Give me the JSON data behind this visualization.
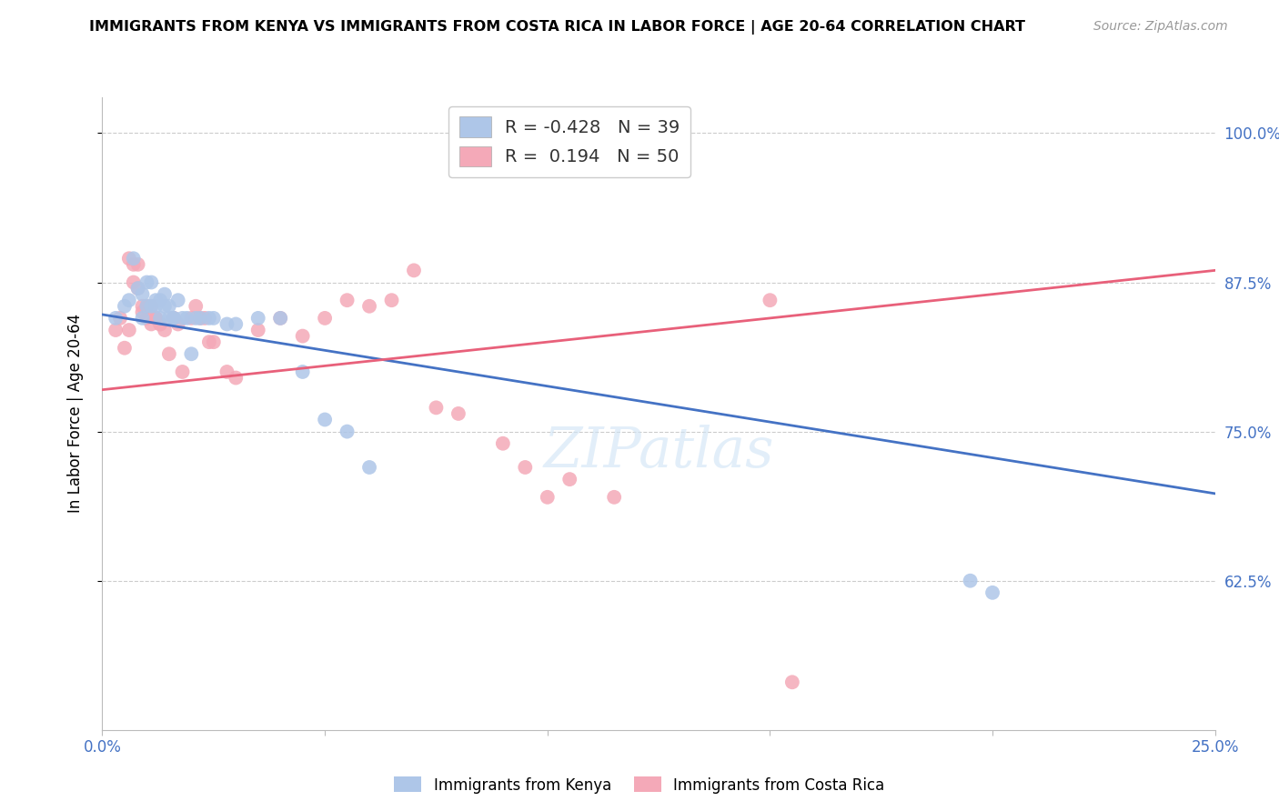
{
  "title": "IMMIGRANTS FROM KENYA VS IMMIGRANTS FROM COSTA RICA IN LABOR FORCE | AGE 20-64 CORRELATION CHART",
  "source": "Source: ZipAtlas.com",
  "ylabel": "In Labor Force | Age 20-64",
  "xlim": [
    0.0,
    0.25
  ],
  "ylim": [
    0.5,
    1.03
  ],
  "yticks": [
    0.625,
    0.75,
    0.875,
    1.0
  ],
  "ytick_labels": [
    "62.5%",
    "75.0%",
    "87.5%",
    "100.0%"
  ],
  "xticks": [
    0.0,
    0.05,
    0.1,
    0.15,
    0.2,
    0.25
  ],
  "xtick_labels": [
    "0.0%",
    "",
    "",
    "",
    "",
    "25.0%"
  ],
  "kenya_R": -0.428,
  "kenya_N": 39,
  "costarica_R": 0.194,
  "costarica_N": 50,
  "kenya_color": "#aec6e8",
  "costarica_color": "#f4a9b8",
  "kenya_line_color": "#4472c4",
  "costarica_line_color": "#e8607a",
  "watermark": "ZIPatlas",
  "kenya_x": [
    0.003,
    0.005,
    0.006,
    0.007,
    0.008,
    0.009,
    0.009,
    0.01,
    0.01,
    0.011,
    0.011,
    0.012,
    0.012,
    0.013,
    0.013,
    0.014,
    0.014,
    0.015,
    0.015,
    0.016,
    0.016,
    0.017,
    0.018,
    0.019,
    0.02,
    0.021,
    0.022,
    0.024,
    0.025,
    0.028,
    0.03,
    0.035,
    0.04,
    0.045,
    0.05,
    0.055,
    0.06,
    0.195,
    0.2
  ],
  "kenya_y": [
    0.845,
    0.855,
    0.86,
    0.895,
    0.87,
    0.865,
    0.845,
    0.855,
    0.875,
    0.855,
    0.875,
    0.86,
    0.855,
    0.845,
    0.86,
    0.855,
    0.865,
    0.845,
    0.855,
    0.845,
    0.845,
    0.86,
    0.845,
    0.845,
    0.815,
    0.845,
    0.845,
    0.845,
    0.845,
    0.84,
    0.84,
    0.845,
    0.845,
    0.8,
    0.76,
    0.75,
    0.72,
    0.625,
    0.615
  ],
  "costarica_x": [
    0.003,
    0.004,
    0.005,
    0.006,
    0.006,
    0.007,
    0.007,
    0.008,
    0.008,
    0.009,
    0.009,
    0.01,
    0.01,
    0.011,
    0.011,
    0.012,
    0.012,
    0.013,
    0.013,
    0.014,
    0.015,
    0.016,
    0.016,
    0.017,
    0.018,
    0.02,
    0.021,
    0.022,
    0.023,
    0.024,
    0.025,
    0.028,
    0.03,
    0.035,
    0.04,
    0.045,
    0.05,
    0.055,
    0.06,
    0.065,
    0.07,
    0.075,
    0.08,
    0.09,
    0.095,
    0.1,
    0.105,
    0.115,
    0.15,
    0.155
  ],
  "costarica_y": [
    0.835,
    0.845,
    0.82,
    0.835,
    0.895,
    0.875,
    0.89,
    0.87,
    0.89,
    0.855,
    0.85,
    0.845,
    0.855,
    0.84,
    0.855,
    0.845,
    0.845,
    0.84,
    0.84,
    0.835,
    0.815,
    0.845,
    0.845,
    0.84,
    0.8,
    0.845,
    0.855,
    0.845,
    0.845,
    0.825,
    0.825,
    0.8,
    0.795,
    0.835,
    0.845,
    0.83,
    0.845,
    0.86,
    0.855,
    0.86,
    0.885,
    0.77,
    0.765,
    0.74,
    0.72,
    0.695,
    0.71,
    0.695,
    0.86,
    0.54
  ],
  "kenya_line_x0": 0.0,
  "kenya_line_y0": 0.848,
  "kenya_line_x1": 0.25,
  "kenya_line_y1": 0.698,
  "cr_line_x0": 0.0,
  "cr_line_y0": 0.785,
  "cr_line_x1": 0.25,
  "cr_line_y1": 0.885
}
